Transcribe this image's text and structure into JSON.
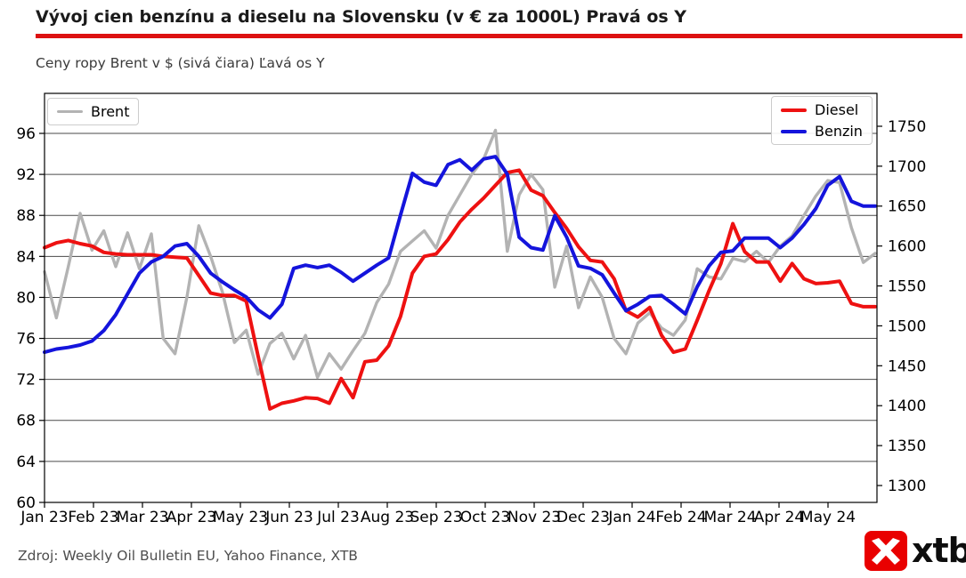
{
  "header": {
    "title": "Vývoj cien benzínu a dieselu na Slovensku (v € za 1000L) Pravá os Y",
    "subtitle": "Ceny ropy Brent v $ (sivá čiara) Ľavá os Y",
    "rule_color": "#dd1111"
  },
  "footer": {
    "source": "Zdroj: Weekly Oil Bulletin EU, Yahoo Finance, XTB",
    "logo_text": "xtb",
    "logo_color": "#e90000"
  },
  "chart_data": {
    "type": "line",
    "title": "Vývoj cien benzínu a dieselu na Slovensku (v € za 1000L) Pravá os Y",
    "subtitle": "Ceny ropy Brent v $ (sivá čiara) Ľavá os Y",
    "grid": "horizontal",
    "x_tick_labels": [
      "Jan 23",
      "Feb 23",
      "Mar 23",
      "Apr 23",
      "May 23",
      "Jun 23",
      "Jul 23",
      "Aug 23",
      "Sep 23",
      "Oct 23",
      "Nov 23",
      "Dec 23",
      "Jan 24",
      "Feb 24",
      "Mar 24",
      "Apr 24",
      "May 24"
    ],
    "left_axis": {
      "ticks": [
        96,
        92,
        88,
        84,
        80,
        76,
        72,
        68,
        64,
        60
      ],
      "range": [
        60,
        99.9
      ],
      "unit": "USD/barrel (Brent)"
    },
    "right_axis": {
      "ticks": [
        1750,
        1700,
        1650,
        1600,
        1550,
        1500,
        1450,
        1400,
        1350,
        1300
      ],
      "range": [
        1279,
        1791
      ],
      "unit": "EUR za 1000L"
    },
    "legend_positions": {
      "brent": "upper left",
      "fuel": "upper right"
    },
    "series": [
      {
        "name": "Brent",
        "axis": "left",
        "color": "#b3b3b3",
        "width": 3.4,
        "values": [
          82.5,
          78.0,
          83.0,
          88.2,
          84.6,
          86.5,
          83.0,
          86.3,
          82.8,
          86.2,
          76.0,
          74.5,
          80.0,
          87.0,
          84.0,
          80.5,
          75.6,
          76.8,
          72.5,
          75.5,
          76.5,
          74.0,
          76.3,
          72.2,
          74.5,
          73.0,
          74.8,
          76.5,
          79.5,
          81.3,
          84.5,
          85.5,
          86.5,
          84.8,
          88.0,
          90.0,
          92.0,
          93.5,
          96.3,
          84.5,
          90.0,
          92.0,
          90.5,
          81.0,
          85.0,
          79.0,
          82.0,
          80.0,
          76.0,
          74.5,
          77.5,
          78.5,
          77.0,
          76.3,
          77.8,
          82.8,
          82.0,
          81.8,
          83.8,
          83.5,
          84.5,
          83.4,
          85.0,
          86.0,
          88.0,
          89.9,
          91.4,
          91.2,
          86.8,
          83.4,
          84.3
        ]
      },
      {
        "name": "Diesel",
        "axis": "right",
        "color": "#ee1111",
        "width": 4,
        "values": [
          1598,
          1604,
          1607,
          1603,
          1600,
          1592,
          1590,
          1589,
          1589,
          1589,
          1587,
          1586,
          1585,
          1563,
          1541,
          1538,
          1538,
          1531,
          1462,
          1396,
          1403,
          1406,
          1410,
          1409,
          1403,
          1434,
          1410,
          1455,
          1457,
          1475,
          1512,
          1566,
          1587,
          1590,
          1608,
          1630,
          1646,
          1660,
          1676,
          1692,
          1695,
          1670,
          1663,
          1642,
          1622,
          1599,
          1582,
          1580,
          1559,
          1519,
          1511,
          1523,
          1488,
          1467,
          1471,
          1507,
          1544,
          1578,
          1628,
          1593,
          1580,
          1580,
          1556,
          1578,
          1559,
          1553,
          1554,
          1556,
          1528,
          1524,
          1524
        ]
      },
      {
        "name": "Benzin",
        "axis": "right",
        "color": "#1414dc",
        "width": 4,
        "values": [
          1467,
          1471,
          1473,
          1476,
          1481,
          1494,
          1514,
          1540,
          1566,
          1580,
          1587,
          1600,
          1603,
          1587,
          1566,
          1555,
          1545,
          1536,
          1520,
          1510,
          1527,
          1572,
          1576,
          1573,
          1576,
          1567,
          1556,
          1566,
          1576,
          1585,
          1639,
          1691,
          1680,
          1676,
          1702,
          1708,
          1695,
          1709,
          1712,
          1690,
          1611,
          1598,
          1595,
          1638,
          1611,
          1575,
          1572,
          1564,
          1541,
          1519,
          1527,
          1537,
          1538,
          1527,
          1515,
          1549,
          1575,
          1592,
          1594,
          1610,
          1610,
          1610,
          1598,
          1610,
          1627,
          1647,
          1676,
          1687,
          1656,
          1650,
          1650
        ]
      }
    ]
  }
}
